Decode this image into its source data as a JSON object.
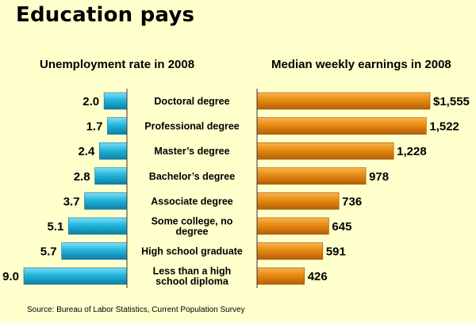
{
  "page": {
    "title": "Education pays",
    "source": "Source: Bureau of Labor Statistics, Current Population Survey"
  },
  "chart_data": [
    {
      "type": "bar",
      "orientation": "horizontal",
      "direction": "right-to-left",
      "title": "Unemployment rate in 2008",
      "categories": [
        "Doctoral degree",
        "Professional degree",
        "Master’s degree",
        "Bachelor’s degree",
        "Associate degree",
        "Some college, no degree",
        "High school graduate",
        "Less than a high school diploma"
      ],
      "category_lines": [
        [
          "Doctoral degree"
        ],
        [
          "Professional degree"
        ],
        [
          "Master’s degree"
        ],
        [
          "Bachelor’s degree"
        ],
        [
          "Associate degree"
        ],
        [
          "Some college, no",
          "degree"
        ],
        [
          "High school graduate"
        ],
        [
          "Less than a high",
          "school diploma"
        ]
      ],
      "values": [
        2.0,
        1.7,
        2.4,
        2.8,
        3.7,
        5.1,
        5.7,
        9.0
      ],
      "labels": [
        "2.0",
        "1.7",
        "2.4",
        "2.8",
        "3.7",
        "5.1",
        "5.7",
        "9.0"
      ],
      "color": "#22b5dd",
      "grid": false
    },
    {
      "type": "bar",
      "orientation": "horizontal",
      "direction": "left-to-right",
      "title": "Median weekly earnings in 2008",
      "categories": [
        "Doctoral degree",
        "Professional degree",
        "Master’s degree",
        "Bachelor’s degree",
        "Associate degree",
        "Some college, no degree",
        "High school graduate",
        "Less than a high school diploma"
      ],
      "values": [
        1555,
        1522,
        1228,
        978,
        736,
        645,
        591,
        426
      ],
      "labels": [
        "$1,555",
        "1,522",
        "1,228",
        "978",
        "736",
        "645",
        "591",
        "426"
      ],
      "color": "#e88a10",
      "grid": false
    }
  ]
}
